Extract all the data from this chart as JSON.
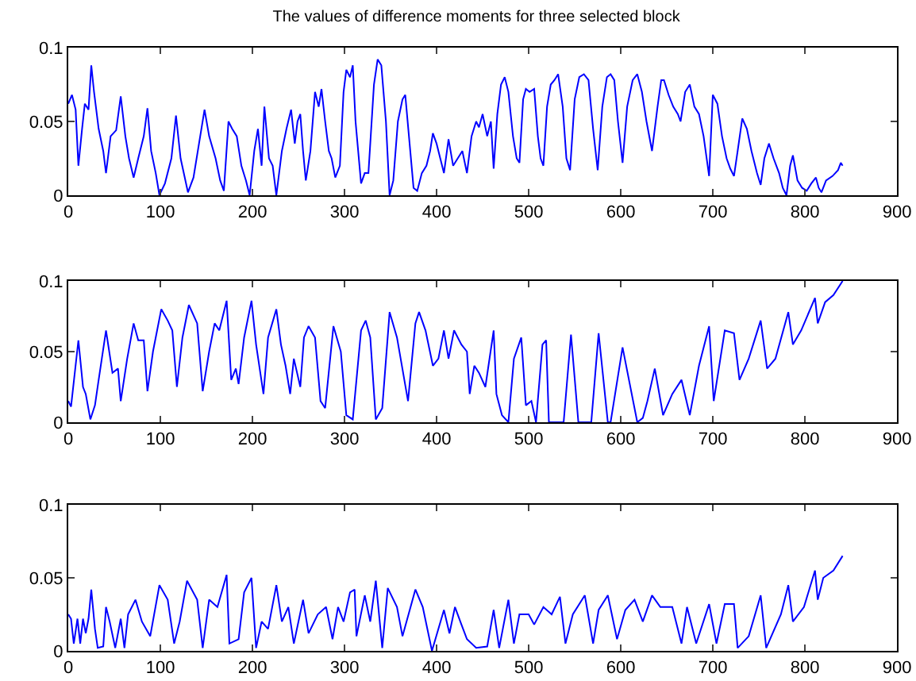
{
  "chart_data": [
    {
      "type": "line",
      "title": "The values of difference moments for three selected block",
      "color": "#0000ff",
      "grid": false,
      "xlim": [
        0,
        900
      ],
      "xticks": [
        0,
        100,
        200,
        300,
        400,
        500,
        600,
        700,
        800,
        900
      ],
      "ylim": [
        0,
        0.1
      ],
      "yticks": [
        0,
        0.05,
        0.1
      ],
      "x": [
        0,
        4,
        8,
        11,
        15,
        18,
        22,
        25,
        28,
        33,
        38,
        41,
        46,
        52,
        57,
        62,
        66,
        71,
        76,
        82,
        86,
        90,
        95,
        99,
        105,
        112,
        117,
        122,
        130,
        136,
        142,
        148,
        153,
        160,
        165,
        169,
        174,
        178,
        183,
        188,
        193,
        197,
        202,
        206,
        210,
        213,
        218,
        222,
        226,
        232,
        237,
        242,
        246,
        249,
        252,
        255,
        258,
        263,
        268,
        272,
        275,
        279,
        283,
        286,
        290,
        295,
        299,
        302,
        306,
        309,
        312,
        318,
        322,
        326,
        332,
        336,
        340,
        345,
        349,
        353,
        358,
        363,
        366,
        370,
        375,
        379,
        384,
        389,
        393,
        396,
        400,
        404,
        408,
        413,
        418,
        423,
        428,
        433,
        438,
        443,
        446,
        450,
        455,
        459,
        462,
        466,
        470,
        474,
        478,
        483,
        487,
        490,
        494,
        497,
        501,
        506,
        510,
        513,
        516,
        520,
        524,
        528,
        532,
        537,
        541,
        545,
        550,
        555,
        560,
        565,
        570,
        575,
        580,
        585,
        589,
        593,
        597,
        602,
        607,
        613,
        618,
        623,
        628,
        634,
        640,
        644,
        647,
        652,
        657,
        662,
        665,
        670,
        675,
        680,
        685,
        690,
        696,
        700,
        705,
        710,
        715,
        719,
        723,
        727,
        732,
        737,
        742,
        748,
        752,
        756,
        761,
        766,
        772,
        776,
        780,
        784,
        787,
        792,
        797,
        802,
        807,
        812,
        815,
        818,
        823,
        830,
        836,
        839,
        841
      ],
      "values": [
        0.062,
        0.068,
        0.058,
        0.02,
        0.045,
        0.062,
        0.058,
        0.088,
        0.07,
        0.045,
        0.03,
        0.015,
        0.04,
        0.044,
        0.067,
        0.04,
        0.025,
        0.012,
        0.025,
        0.04,
        0.059,
        0.03,
        0.015,
        0.0,
        0.008,
        0.025,
        0.054,
        0.025,
        0.002,
        0.012,
        0.035,
        0.058,
        0.04,
        0.025,
        0.01,
        0.003,
        0.05,
        0.045,
        0.04,
        0.02,
        0.01,
        0.0,
        0.03,
        0.045,
        0.02,
        0.06,
        0.025,
        0.02,
        0.0,
        0.03,
        0.045,
        0.058,
        0.035,
        0.05,
        0.055,
        0.03,
        0.01,
        0.03,
        0.07,
        0.06,
        0.072,
        0.05,
        0.03,
        0.025,
        0.012,
        0.02,
        0.07,
        0.085,
        0.08,
        0.088,
        0.05,
        0.008,
        0.015,
        0.015,
        0.075,
        0.092,
        0.088,
        0.05,
        0.0,
        0.01,
        0.05,
        0.065,
        0.068,
        0.04,
        0.005,
        0.003,
        0.015,
        0.02,
        0.03,
        0.042,
        0.035,
        0.025,
        0.015,
        0.038,
        0.02,
        0.025,
        0.03,
        0.015,
        0.04,
        0.05,
        0.046,
        0.055,
        0.04,
        0.05,
        0.018,
        0.055,
        0.075,
        0.08,
        0.07,
        0.04,
        0.025,
        0.022,
        0.065,
        0.072,
        0.07,
        0.072,
        0.04,
        0.025,
        0.02,
        0.06,
        0.075,
        0.078,
        0.082,
        0.06,
        0.025,
        0.017,
        0.065,
        0.08,
        0.082,
        0.078,
        0.045,
        0.017,
        0.06,
        0.08,
        0.082,
        0.078,
        0.05,
        0.022,
        0.06,
        0.078,
        0.082,
        0.07,
        0.05,
        0.03,
        0.06,
        0.078,
        0.078,
        0.068,
        0.06,
        0.055,
        0.05,
        0.07,
        0.075,
        0.06,
        0.055,
        0.04,
        0.013,
        0.068,
        0.062,
        0.04,
        0.025,
        0.018,
        0.013,
        0.03,
        0.052,
        0.045,
        0.03,
        0.015,
        0.007,
        0.025,
        0.035,
        0.025,
        0.015,
        0.005,
        0.0,
        0.02,
        0.027,
        0.01,
        0.005,
        0.003,
        0.008,
        0.012,
        0.005,
        0.002,
        0.01,
        0.013,
        0.017,
        0.022,
        0.02
      ]
    },
    {
      "type": "line",
      "color": "#0000ff",
      "grid": false,
      "xlim": [
        0,
        900
      ],
      "xticks": [
        0,
        100,
        200,
        300,
        400,
        500,
        600,
        700,
        800,
        900
      ],
      "ylim": [
        0,
        0.1
      ],
      "yticks": [
        0,
        0.05,
        0.1
      ],
      "x": [
        0,
        3,
        11,
        16,
        19,
        24,
        29,
        33,
        41,
        48,
        54,
        57,
        64,
        71,
        76,
        82,
        86,
        92,
        101,
        108,
        113,
        118,
        124,
        131,
        140,
        146,
        153,
        159,
        164,
        172,
        177,
        182,
        185,
        191,
        199,
        204,
        212,
        217,
        226,
        231,
        236,
        241,
        245,
        252,
        256,
        261,
        268,
        274,
        279,
        288,
        296,
        302,
        309,
        318,
        323,
        328,
        334,
        341,
        349,
        357,
        365,
        369,
        377,
        381,
        388,
        396,
        402,
        408,
        413,
        419,
        427,
        433,
        436,
        441,
        446,
        453,
        462,
        465,
        471,
        478,
        484,
        492,
        497,
        503,
        508,
        515,
        519,
        522,
        538,
        546,
        554,
        568,
        576,
        586,
        589,
        602,
        618,
        624,
        629,
        637,
        646,
        656,
        666,
        675,
        685,
        696,
        701,
        713,
        723,
        729,
        739,
        752,
        759,
        768,
        782,
        787,
        796,
        811,
        814,
        822,
        831,
        841
      ],
      "values": [
        0.015,
        0.011,
        0.058,
        0.025,
        0.02,
        0.002,
        0.012,
        0.03,
        0.065,
        0.035,
        0.038,
        0.015,
        0.045,
        0.07,
        0.058,
        0.058,
        0.022,
        0.05,
        0.08,
        0.072,
        0.065,
        0.025,
        0.06,
        0.083,
        0.07,
        0.022,
        0.05,
        0.07,
        0.065,
        0.086,
        0.03,
        0.038,
        0.027,
        0.06,
        0.086,
        0.055,
        0.02,
        0.06,
        0.08,
        0.055,
        0.04,
        0.02,
        0.045,
        0.025,
        0.06,
        0.068,
        0.06,
        0.015,
        0.01,
        0.068,
        0.05,
        0.005,
        0.002,
        0.065,
        0.072,
        0.06,
        0.002,
        0.01,
        0.078,
        0.06,
        0.03,
        0.015,
        0.07,
        0.078,
        0.065,
        0.04,
        0.045,
        0.065,
        0.045,
        0.065,
        0.055,
        0.05,
        0.02,
        0.04,
        0.035,
        0.025,
        0.065,
        0.02,
        0.005,
        0.0,
        0.045,
        0.06,
        0.012,
        0.015,
        0.0,
        0.055,
        0.058,
        0.0,
        0.0,
        0.062,
        0.0,
        0.0,
        0.063,
        0.0,
        0.0,
        0.053,
        0.0,
        0.003,
        0.015,
        0.038,
        0.005,
        0.02,
        0.03,
        0.005,
        0.04,
        0.068,
        0.015,
        0.065,
        0.063,
        0.03,
        0.045,
        0.072,
        0.038,
        0.045,
        0.078,
        0.055,
        0.065,
        0.088,
        0.07,
        0.085,
        0.09,
        0.1
      ]
    },
    {
      "type": "line",
      "color": "#0000ff",
      "grid": false,
      "xlim": [
        0,
        900
      ],
      "xticks": [
        0,
        100,
        200,
        300,
        400,
        500,
        600,
        700,
        800,
        900
      ],
      "ylim": [
        0,
        0.1
      ],
      "yticks": [
        0,
        0.05,
        0.1
      ],
      "x": [
        0,
        3,
        6,
        10,
        13,
        16,
        19,
        22,
        25,
        29,
        32,
        38,
        41,
        45,
        51,
        57,
        61,
        65,
        73,
        80,
        89,
        99,
        108,
        115,
        121,
        129,
        140,
        146,
        153,
        162,
        172,
        175,
        185,
        191,
        199,
        204,
        210,
        217,
        226,
        232,
        239,
        245,
        255,
        261,
        271,
        280,
        287,
        293,
        299,
        306,
        311,
        313,
        322,
        328,
        334,
        341,
        347,
        357,
        363,
        377,
        385,
        395,
        408,
        414,
        420,
        427,
        433,
        443,
        455,
        462,
        468,
        478,
        484,
        490,
        500,
        506,
        516,
        525,
        534,
        540,
        548,
        561,
        570,
        576,
        586,
        596,
        605,
        615,
        624,
        634,
        643,
        656,
        666,
        672,
        682,
        696,
        704,
        713,
        723,
        727,
        739,
        752,
        758,
        774,
        782,
        787,
        799,
        811,
        814,
        820,
        831,
        841
      ],
      "values": [
        0.025,
        0.022,
        0.005,
        0.022,
        0.005,
        0.022,
        0.012,
        0.022,
        0.042,
        0.015,
        0.002,
        0.003,
        0.03,
        0.02,
        0.002,
        0.022,
        0.002,
        0.025,
        0.035,
        0.02,
        0.01,
        0.045,
        0.035,
        0.005,
        0.02,
        0.048,
        0.035,
        0.002,
        0.035,
        0.03,
        0.052,
        0.005,
        0.008,
        0.04,
        0.05,
        0.002,
        0.02,
        0.015,
        0.045,
        0.02,
        0.03,
        0.005,
        0.035,
        0.012,
        0.025,
        0.03,
        0.008,
        0.03,
        0.02,
        0.04,
        0.042,
        0.01,
        0.038,
        0.02,
        0.048,
        0.002,
        0.043,
        0.03,
        0.01,
        0.042,
        0.03,
        0.0,
        0.028,
        0.012,
        0.03,
        0.018,
        0.008,
        0.002,
        0.003,
        0.028,
        0.002,
        0.035,
        0.005,
        0.025,
        0.025,
        0.018,
        0.03,
        0.025,
        0.037,
        0.005,
        0.025,
        0.038,
        0.005,
        0.028,
        0.038,
        0.008,
        0.028,
        0.035,
        0.02,
        0.038,
        0.03,
        0.03,
        0.005,
        0.03,
        0.005,
        0.032,
        0.005,
        0.032,
        0.032,
        0.002,
        0.01,
        0.038,
        0.002,
        0.025,
        0.045,
        0.02,
        0.03,
        0.055,
        0.035,
        0.05,
        0.055,
        0.065
      ]
    }
  ]
}
